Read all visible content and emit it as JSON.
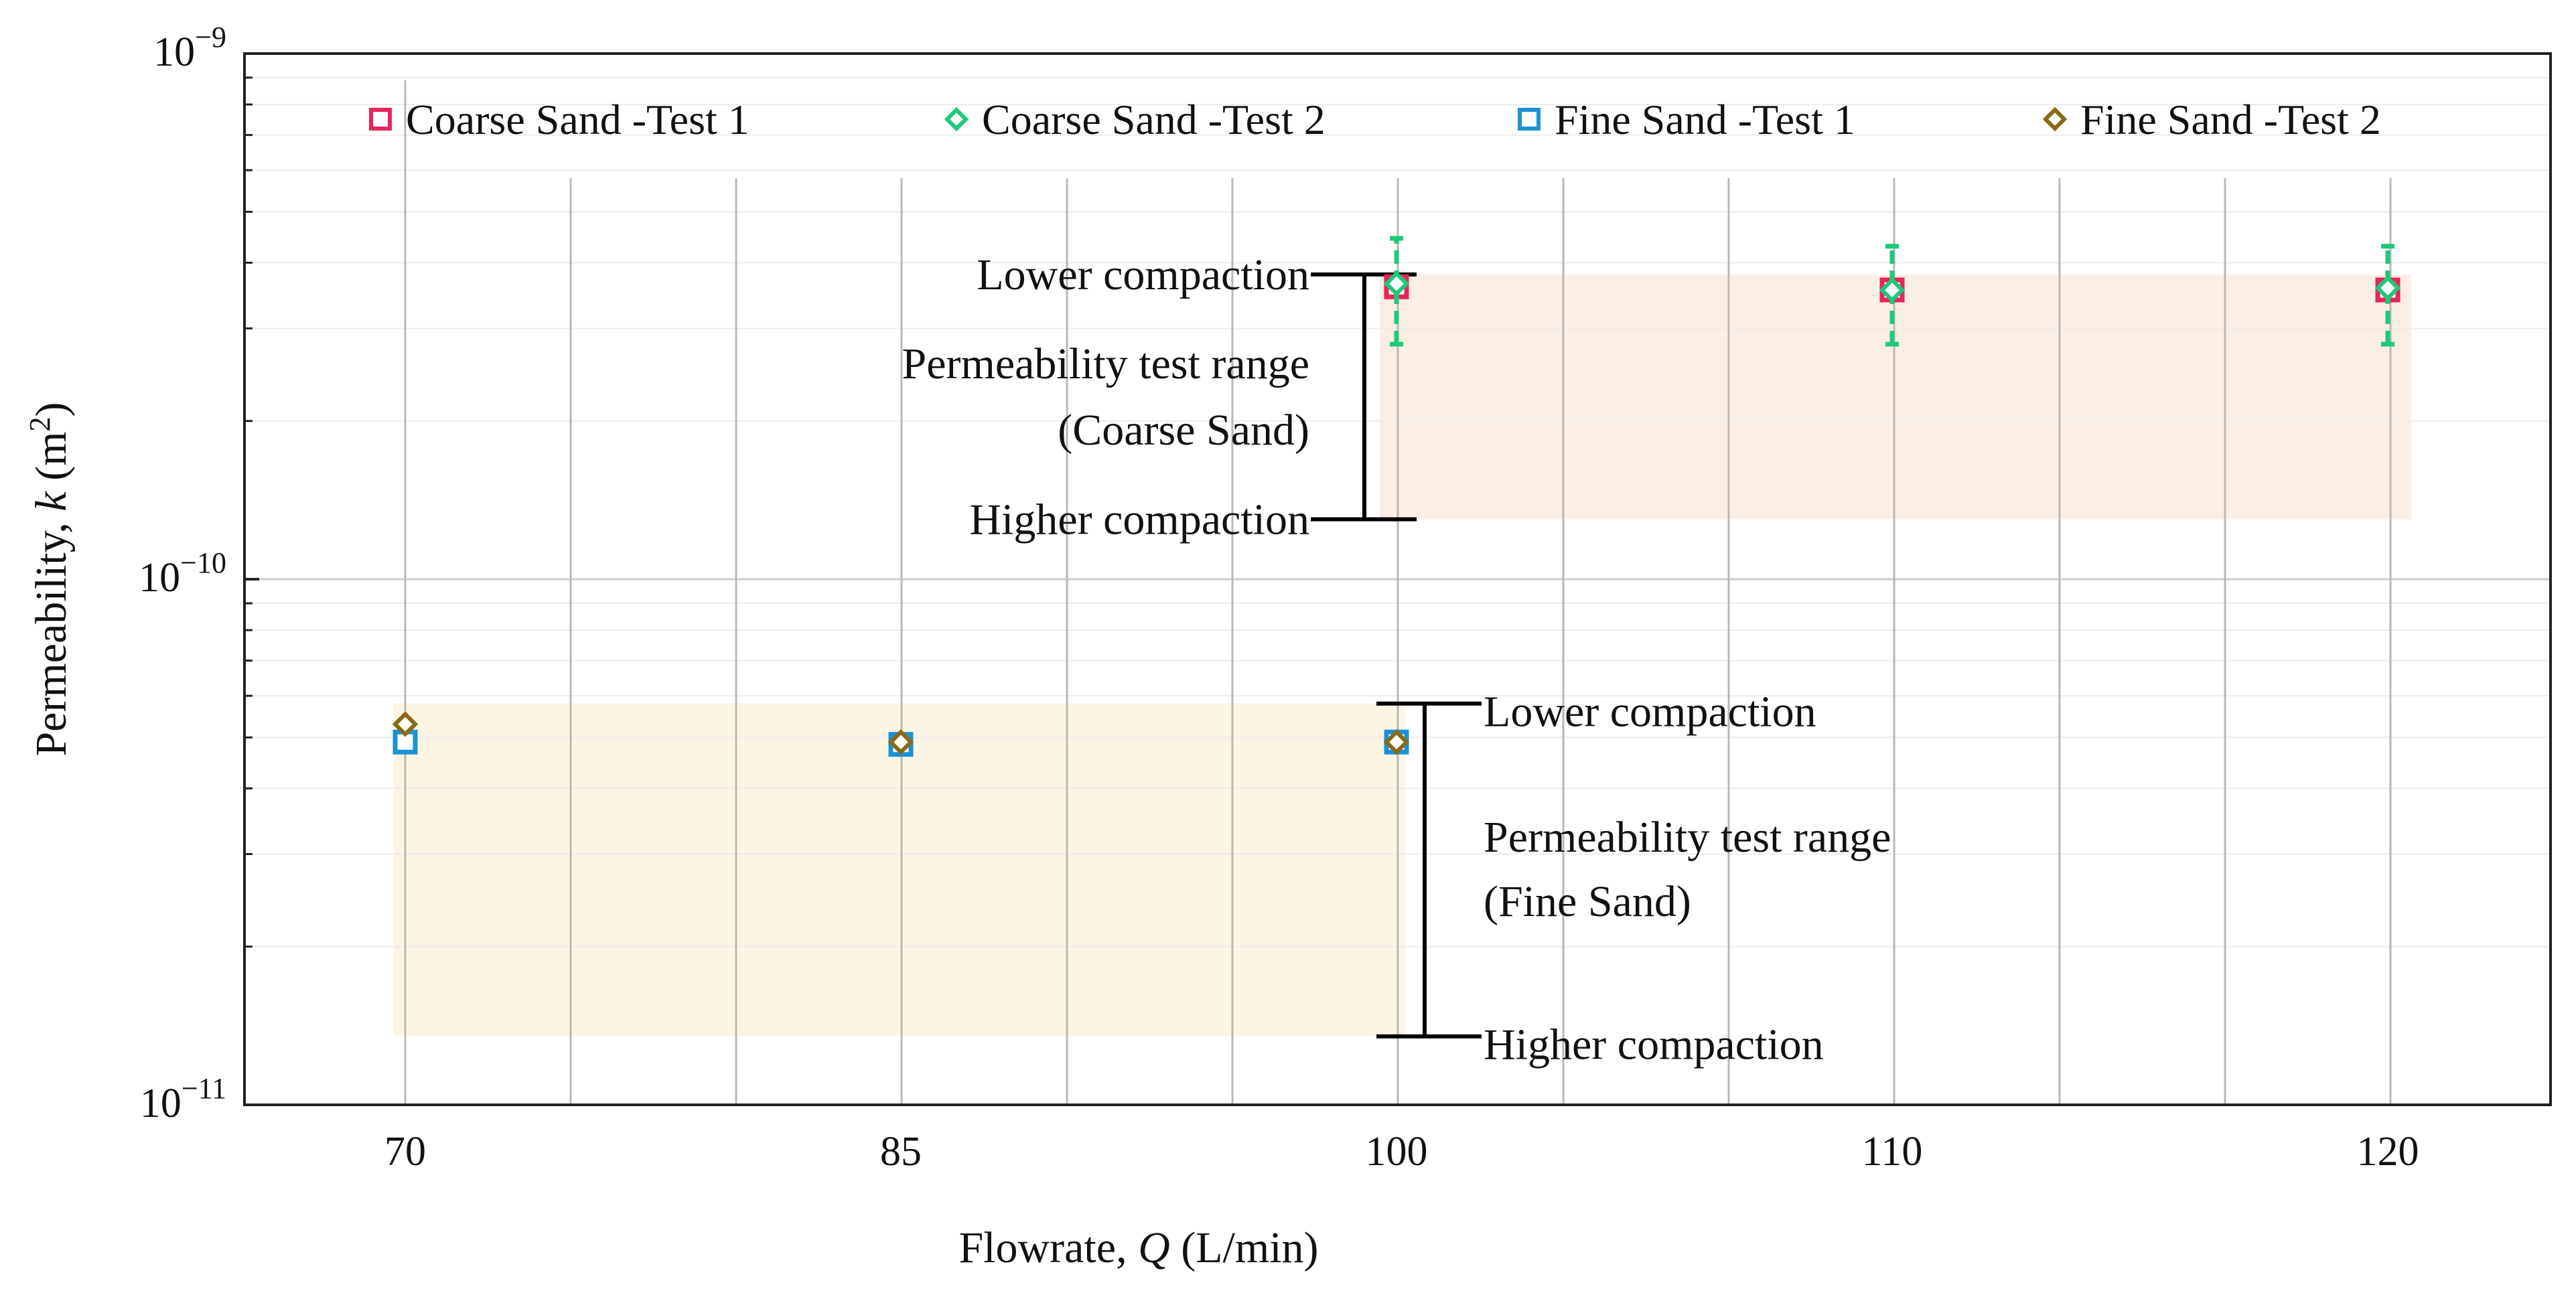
{
  "chart_data": {
    "type": "scatter",
    "x_scale": "category",
    "y_scale": "log",
    "categories": [
      "70",
      "85",
      "100",
      "110",
      "120"
    ],
    "xlabel": {
      "prefix": "Flowrate, ",
      "var": "Q",
      "suffix": " (L/min)"
    },
    "ylabel": {
      "prefix": "Permeability, ",
      "var": "k",
      "suffix": " (m",
      "sup": "2",
      "close": ")"
    },
    "ylim": [
      1e-11,
      1e-09
    ],
    "y_ticks": [
      {
        "value": 1e-09,
        "base": "10",
        "exp": "−9"
      },
      {
        "value": 1e-10,
        "base": "10",
        "exp": "−10"
      },
      {
        "value": 1e-11,
        "base": "10",
        "exp": "−11"
      }
    ],
    "grid": true,
    "legend_position": "top",
    "series": [
      {
        "name": "Coarse Sand -Test 1",
        "marker": "square",
        "color": "#e8245a",
        "x": [
          "100",
          "110",
          "120"
        ],
        "y": [
          3.6e-10,
          3.55e-10,
          3.55e-10
        ]
      },
      {
        "name": "Coarse Sand -Test 2",
        "marker": "diamond",
        "color": "#1fc97a",
        "x": [
          "100",
          "110",
          "120"
        ],
        "y": [
          3.65e-10,
          3.55e-10,
          3.58e-10
        ],
        "err_low": [
          2.8e-10,
          2.8e-10,
          2.8e-10
        ],
        "err_high": [
          4.45e-10,
          4.3e-10,
          4.3e-10
        ]
      },
      {
        "name": "Fine Sand -Test 1",
        "marker": "square",
        "color": "#1a93d6",
        "x": [
          "70",
          "85",
          "100"
        ],
        "y": [
          4.9e-11,
          4.85e-11,
          4.9e-11
        ]
      },
      {
        "name": "Fine Sand -Test 2",
        "marker": "diamond",
        "color": "#8a6a14",
        "x": [
          "70",
          "85",
          "100"
        ],
        "y": [
          5.3e-11,
          4.9e-11,
          4.9e-11
        ]
      }
    ],
    "ranges": [
      {
        "label_line1": "Permeability test range",
        "label_line2": "(Coarse Sand)",
        "upper_label": "Lower compaction",
        "lower_label": "Higher compaction",
        "k_upper": 3.8e-10,
        "k_lower": 1.3e-10,
        "color": "#fbeee4"
      },
      {
        "label_line1": "Permeability test range",
        "label_line2": "(Fine Sand)",
        "upper_label": "Lower compaction",
        "lower_label": "Higher compaction",
        "k_upper": 5.8e-11,
        "k_lower": 1.35e-11,
        "color": "#fdf5e4"
      }
    ]
  }
}
